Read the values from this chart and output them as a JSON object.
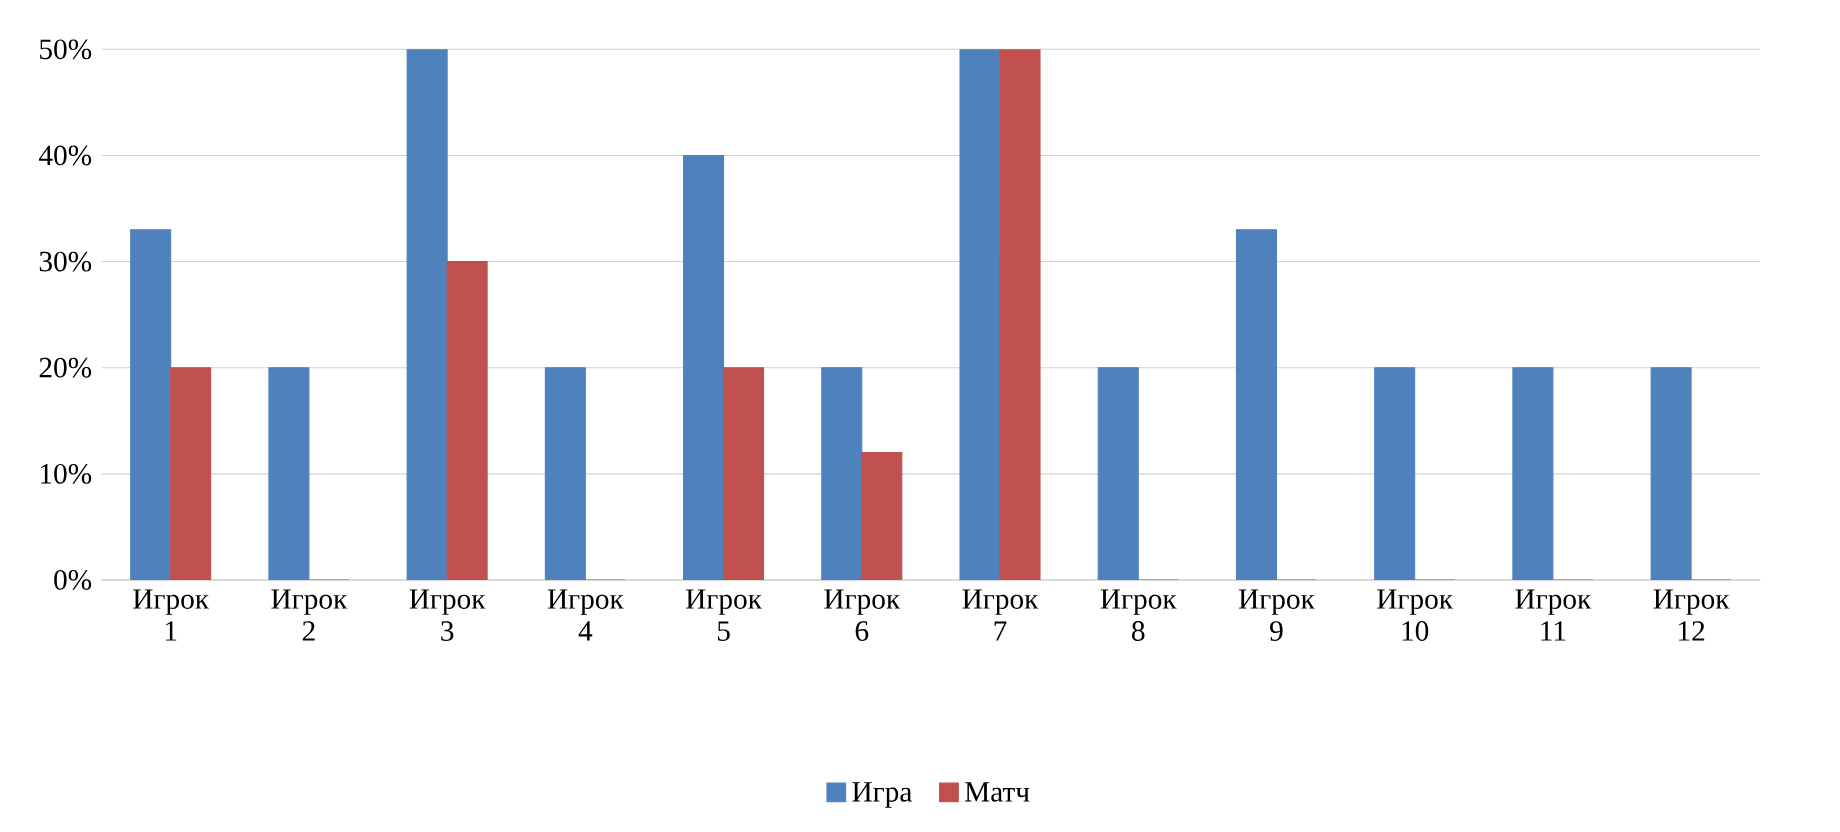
{
  "chart_data": {
    "type": "bar",
    "categories": [
      "Игрок 1",
      "Игрок 2",
      "Игрок 3",
      "Игрок 4",
      "Игрок 5",
      "Игрок 6",
      "Игрок 7",
      "Игрок 8",
      "Игрок 9",
      "Игрок 10",
      "Игрок 11",
      "Игрок 12"
    ],
    "series": [
      {
        "name": "Игра",
        "color": "#4f81bd",
        "values": [
          33,
          20,
          50,
          20,
          40,
          20,
          50,
          20,
          33,
          20,
          20,
          20
        ]
      },
      {
        "name": "Матч",
        "color": "#c0504d",
        "values": [
          20,
          0,
          30,
          0,
          20,
          12,
          50,
          0,
          0,
          0,
          0,
          0
        ]
      }
    ],
    "ylim": [
      0,
      50
    ],
    "yticks": [
      {
        "value": 0,
        "label": "0%"
      },
      {
        "value": 10,
        "label": "10%"
      },
      {
        "value": 20,
        "label": "20%"
      },
      {
        "value": 30,
        "label": "30%"
      },
      {
        "value": 40,
        "label": "40%"
      },
      {
        "value": 50,
        "label": "50%"
      }
    ],
    "grid": "y",
    "legend": "bottom"
  }
}
